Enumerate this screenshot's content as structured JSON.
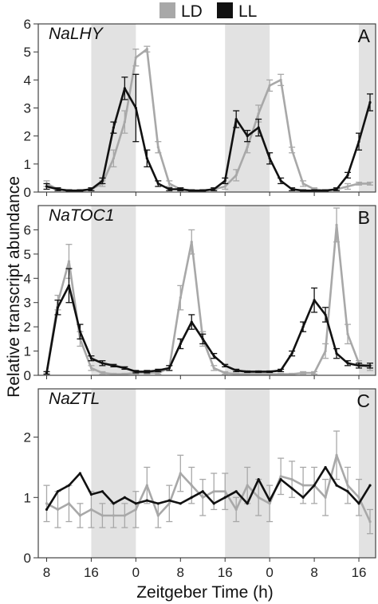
{
  "legend": [
    {
      "label": "LD",
      "color": "#a8a8a8"
    },
    {
      "label": "LL",
      "color": "#111111"
    }
  ],
  "xlabel": "Zeitgeber Time (h)",
  "ylabel": "Relative transcript abundance",
  "x_ticks": [
    "8",
    "16",
    "0",
    "8",
    "16",
    "0",
    "8",
    "16"
  ],
  "chart_data": [
    {
      "type": "line",
      "panel_label": "A",
      "gene": "NaLHY",
      "ylim": [
        0,
        6
      ],
      "y_ticks": [
        "0",
        "1",
        "2",
        "3",
        "4",
        "5",
        "6"
      ],
      "x_ticks": [
        "8",
        "16",
        "0",
        "8",
        "16",
        "0",
        "8",
        "16"
      ],
      "xlabel": "Zeitgeber Time (h)",
      "ylabel": "Relative transcript abundance",
      "shaded_intervals": [
        [
          16,
          24
        ],
        [
          40,
          48
        ],
        [
          64,
          67
        ]
      ],
      "series": [
        {
          "name": "LD",
          "color": "#a8a8a8",
          "x": [
            8,
            10,
            12,
            14,
            16,
            18,
            20,
            22,
            24,
            26,
            28,
            30,
            32,
            34,
            36,
            38,
            40,
            42,
            44,
            46,
            48,
            50,
            52,
            54,
            56,
            58,
            60,
            62,
            64,
            66
          ],
          "y": [
            0.3,
            0.1,
            0.05,
            0.05,
            0.1,
            0.3,
            1.2,
            2.5,
            4.8,
            5.1,
            1.6,
            0.3,
            0.1,
            0.05,
            0.05,
            0.1,
            0.2,
            0.6,
            1.6,
            2.8,
            3.8,
            4.0,
            1.5,
            0.3,
            0.1,
            0.05,
            0.1,
            0.2,
            0.3,
            0.3
          ],
          "err": [
            0.1,
            0.05,
            0.03,
            0.03,
            0.05,
            0.1,
            0.3,
            0.4,
            0.3,
            0.1,
            0.2,
            0.1,
            0.05,
            0.03,
            0.03,
            0.05,
            0.1,
            0.2,
            0.2,
            0.3,
            0.2,
            0.2,
            0.1,
            0.1,
            0.05,
            0.03,
            0.05,
            0.1,
            0.05,
            0.05
          ]
        },
        {
          "name": "LL",
          "color": "#111111",
          "x": [
            8,
            10,
            12,
            14,
            16,
            18,
            20,
            22,
            24,
            26,
            28,
            30,
            32,
            34,
            36,
            38,
            40,
            42,
            44,
            46,
            48,
            50,
            52,
            54,
            56,
            58,
            60,
            62,
            64,
            66
          ],
          "y": [
            0.2,
            0.1,
            0.05,
            0.05,
            0.1,
            0.4,
            2.3,
            3.7,
            3.0,
            1.2,
            0.3,
            0.1,
            0.1,
            0.05,
            0.05,
            0.1,
            0.4,
            2.6,
            2.0,
            2.3,
            1.2,
            0.4,
            0.1,
            0.05,
            0.05,
            0.05,
            0.1,
            0.6,
            1.8,
            3.2
          ],
          "err": [
            0.1,
            0.05,
            0.03,
            0.03,
            0.05,
            0.1,
            0.2,
            0.4,
            1.2,
            0.3,
            0.1,
            0.05,
            0.05,
            0.03,
            0.03,
            0.05,
            0.1,
            0.3,
            0.2,
            0.3,
            0.2,
            0.1,
            0.05,
            0.03,
            0.03,
            0.03,
            0.05,
            0.1,
            0.3,
            0.3
          ]
        }
      ]
    },
    {
      "type": "line",
      "panel_label": "B",
      "gene": "NaTOC1",
      "ylim": [
        0,
        7
      ],
      "y_ticks": [
        "0",
        "1",
        "2",
        "3",
        "4",
        "5",
        "6"
      ],
      "x_ticks": [
        "8",
        "16",
        "0",
        "8",
        "16",
        "0",
        "8",
        "16"
      ],
      "xlabel": "Zeitgeber Time (h)",
      "ylabel": "Relative transcript abundance",
      "shaded_intervals": [
        [
          16,
          24
        ],
        [
          40,
          48
        ],
        [
          64,
          67
        ]
      ],
      "series": [
        {
          "name": "LD",
          "color": "#a8a8a8",
          "x": [
            8,
            10,
            12,
            14,
            16,
            18,
            20,
            22,
            24,
            26,
            28,
            30,
            32,
            34,
            36,
            38,
            40,
            42,
            44,
            46,
            48,
            50,
            52,
            54,
            56,
            58,
            60,
            62,
            64,
            66
          ],
          "y": [
            0.1,
            3.0,
            4.7,
            1.5,
            0.3,
            0.1,
            0.05,
            0.05,
            0.1,
            0.1,
            0.1,
            0.3,
            3.2,
            5.5,
            1.5,
            0.3,
            0.1,
            0.05,
            0.05,
            0.05,
            0.05,
            0.05,
            0.05,
            0.1,
            0.1,
            1.0,
            6.2,
            1.7,
            0.5,
            0.3
          ],
          "err": [
            0.05,
            0.3,
            0.7,
            0.3,
            0.1,
            0.05,
            0.03,
            0.03,
            0.05,
            0.05,
            0.05,
            0.1,
            0.5,
            0.5,
            0.3,
            0.1,
            0.05,
            0.03,
            0.03,
            0.03,
            0.03,
            0.03,
            0.03,
            0.05,
            0.05,
            0.3,
            0.7,
            0.4,
            0.1,
            0.1
          ]
        },
        {
          "name": "LL",
          "color": "#111111",
          "x": [
            8,
            10,
            12,
            14,
            16,
            18,
            20,
            22,
            24,
            26,
            28,
            30,
            32,
            34,
            36,
            38,
            40,
            42,
            44,
            46,
            48,
            50,
            52,
            54,
            56,
            58,
            60,
            62,
            64,
            66
          ],
          "y": [
            0.1,
            2.8,
            3.7,
            1.8,
            0.7,
            0.5,
            0.4,
            0.3,
            0.15,
            0.15,
            0.2,
            0.3,
            1.3,
            2.2,
            1.5,
            0.8,
            0.4,
            0.2,
            0.15,
            0.15,
            0.15,
            0.2,
            0.9,
            2.0,
            3.1,
            2.5,
            0.9,
            0.5,
            0.4,
            0.4
          ],
          "err": [
            0.05,
            0.3,
            0.7,
            0.3,
            0.1,
            0.1,
            0.05,
            0.05,
            0.05,
            0.05,
            0.05,
            0.1,
            0.2,
            0.3,
            0.2,
            0.1,
            0.05,
            0.05,
            0.03,
            0.03,
            0.03,
            0.05,
            0.1,
            0.2,
            0.5,
            0.3,
            0.2,
            0.1,
            0.1,
            0.1
          ]
        }
      ]
    },
    {
      "type": "line",
      "panel_label": "C",
      "gene": "NaZTL",
      "ylim": [
        0,
        2.8
      ],
      "y_ticks": [
        "0",
        "1",
        "2"
      ],
      "x_ticks": [
        "8",
        "16",
        "0",
        "8",
        "16",
        "0",
        "8",
        "16"
      ],
      "xlabel": "Zeitgeber Time (h)",
      "ylabel": "Relative transcript abundance",
      "shaded_intervals": [
        [
          16,
          24
        ],
        [
          40,
          48
        ],
        [
          64,
          67
        ]
      ],
      "series": [
        {
          "name": "LD",
          "color": "#a8a8a8",
          "x": [
            8,
            10,
            12,
            14,
            16,
            18,
            20,
            22,
            24,
            26,
            28,
            30,
            32,
            34,
            36,
            38,
            40,
            42,
            44,
            46,
            48,
            50,
            52,
            54,
            56,
            58,
            60,
            62,
            64,
            66
          ],
          "y": [
            0.9,
            0.8,
            0.9,
            0.7,
            0.8,
            0.7,
            0.7,
            0.7,
            0.8,
            1.2,
            0.7,
            0.9,
            1.4,
            1.2,
            1.0,
            1.1,
            1.1,
            0.8,
            1.2,
            1.0,
            0.9,
            1.35,
            1.3,
            1.2,
            1.2,
            1.0,
            1.7,
            1.2,
            1.0,
            0.6
          ],
          "err": [
            0.3,
            0.3,
            0.3,
            0.2,
            0.3,
            0.2,
            0.2,
            0.2,
            0.3,
            0.3,
            0.2,
            0.3,
            0.3,
            0.3,
            0.3,
            0.3,
            0.3,
            0.2,
            0.3,
            0.3,
            0.3,
            0.3,
            0.3,
            0.3,
            0.3,
            0.3,
            0.4,
            0.3,
            0.3,
            0.2
          ]
        },
        {
          "name": "LL",
          "color": "#111111",
          "x": [
            8,
            10,
            12,
            14,
            16,
            18,
            20,
            22,
            24,
            26,
            28,
            30,
            32,
            34,
            36,
            38,
            40,
            42,
            44,
            46,
            48,
            50,
            52,
            54,
            56,
            58,
            60,
            62,
            64,
            66
          ],
          "y": [
            0.8,
            1.1,
            1.2,
            1.4,
            1.05,
            1.1,
            0.9,
            1.0,
            0.9,
            0.95,
            0.9,
            0.95,
            0.9,
            1.0,
            1.1,
            0.9,
            1.0,
            1.1,
            0.9,
            1.3,
            0.95,
            1.3,
            1.15,
            1.0,
            1.2,
            1.5,
            1.2,
            1.1,
            0.9,
            1.2
          ]
        }
      ]
    }
  ]
}
